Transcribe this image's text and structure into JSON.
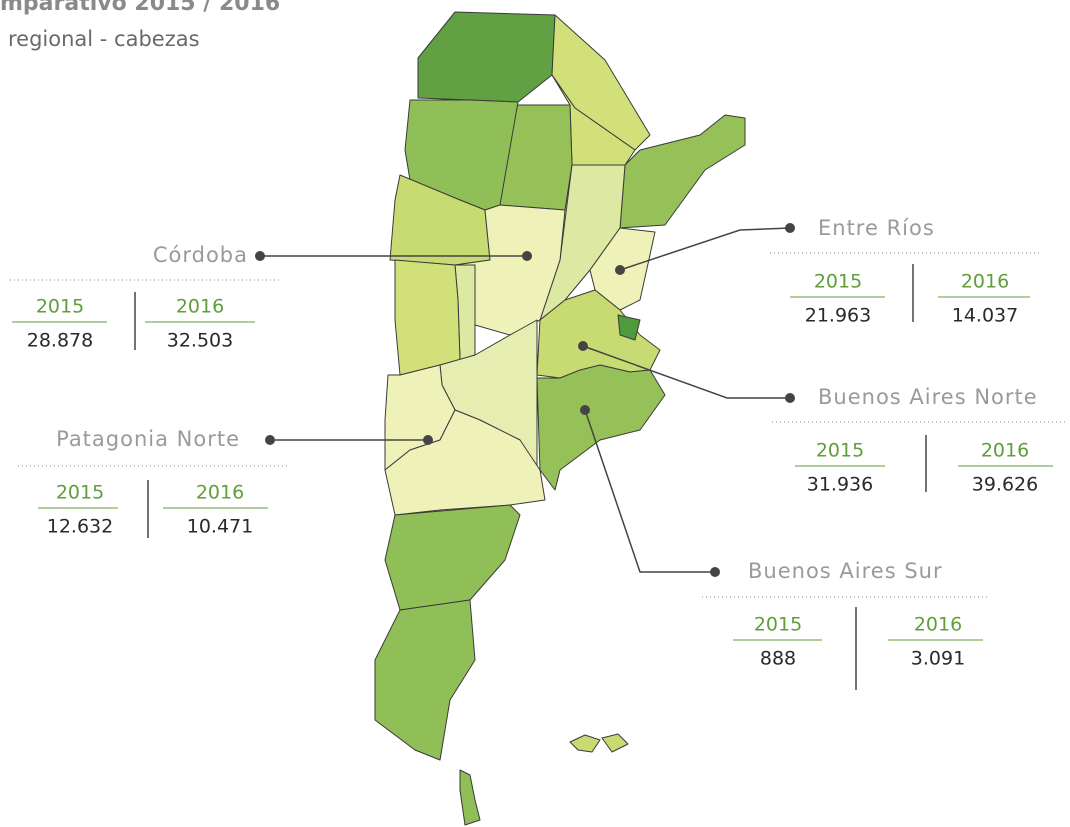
{
  "title": "mparativo 2015 / 2016",
  "subtitle": "regional - cabezas",
  "regions": [
    {
      "name": "Córdoba",
      "year_a": "2015",
      "year_b": "2016",
      "value_a": "28.878",
      "value_b": "32.503"
    },
    {
      "name": "Patagonia Norte",
      "year_a": "2015",
      "year_b": "2016",
      "value_a": "12.632",
      "value_b": "10.471"
    },
    {
      "name": "Entre Ríos",
      "year_a": "2015",
      "year_b": "2016",
      "value_a": "21.963",
      "value_b": "14.037"
    },
    {
      "name": "Buenos Aires Norte",
      "year_a": "2015",
      "year_b": "2016",
      "value_a": "31.936",
      "value_b": "39.626"
    },
    {
      "name": "Buenos Aires Sur",
      "year_a": "2015",
      "year_b": "2016",
      "value_a": "888",
      "value_b": "3.091"
    }
  ]
}
